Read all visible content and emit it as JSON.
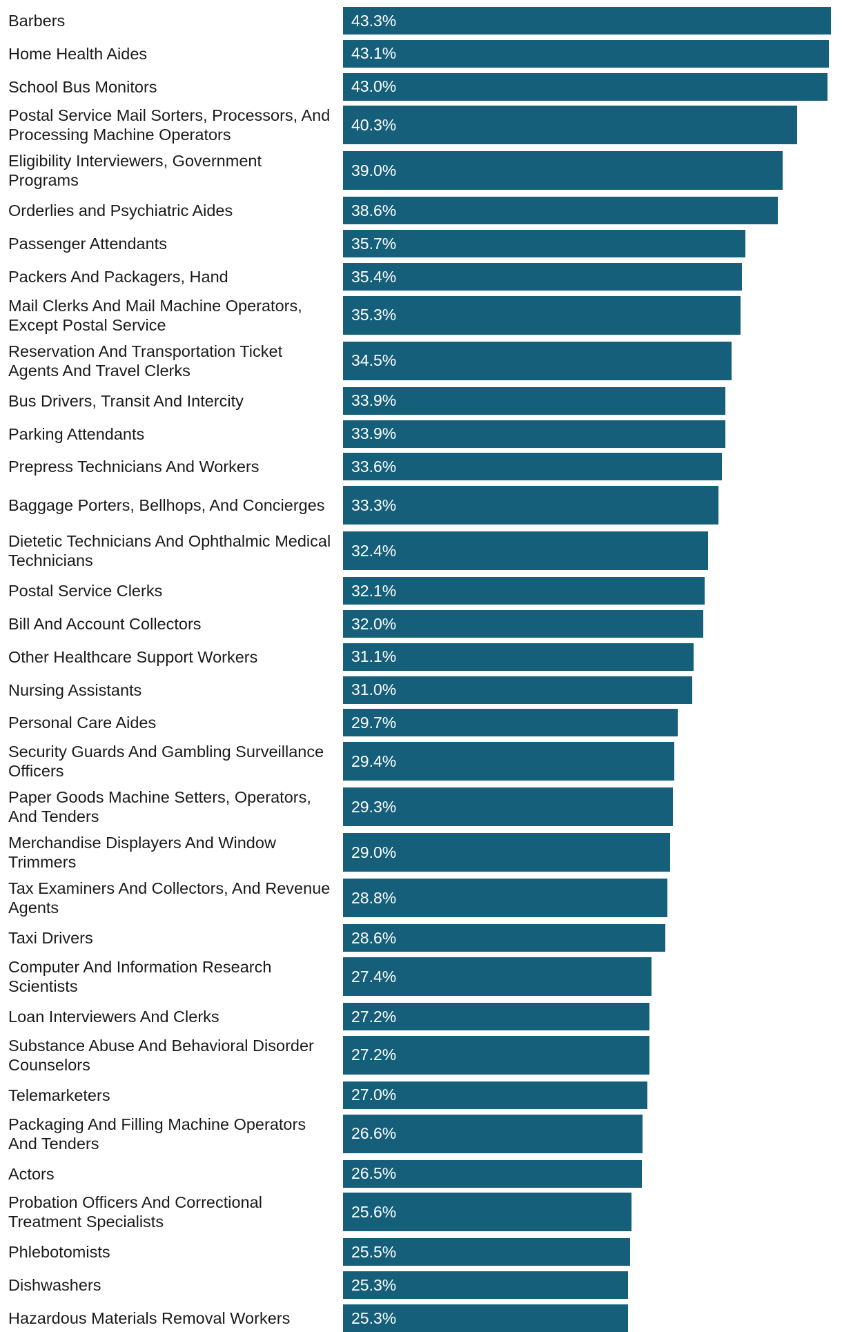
{
  "chart_data": {
    "type": "bar",
    "orientation": "horizontal",
    "bar_color": "#155f7a",
    "value_suffix": "%",
    "xlim": [
      0,
      43.3
    ],
    "categories": [
      "Barbers",
      "Home Health Aides",
      "School Bus Monitors",
      "Postal Service Mail Sorters, Processors, And Processing Machine Operators",
      "Eligibility Interviewers, Government Programs",
      "Orderlies and Psychiatric Aides",
      "Passenger Attendants",
      "Packers And Packagers, Hand",
      "Mail Clerks And Mail Machine Operators, Except Postal Service",
      "Reservation And Transportation Ticket Agents And Travel Clerks",
      "Bus Drivers, Transit And Intercity",
      "Parking Attendants",
      "Prepress Technicians And Workers",
      "Baggage Porters, Bellhops, And Concierges",
      "Dietetic Technicians And Ophthalmic Medical Technicians",
      "Postal Service Clerks",
      "Bill And Account Collectors",
      "Other Healthcare Support Workers",
      "Nursing Assistants",
      "Personal Care Aides",
      "Security Guards And Gambling Surveillance Officers",
      "Paper Goods Machine Setters, Operators, And Tenders",
      "Merchandise Displayers And Window Trimmers",
      "Tax Examiners And Collectors, And Revenue Agents",
      "Taxi Drivers",
      "Computer And Information Research Scientists",
      "Loan Interviewers And Clerks",
      "Substance Abuse And Behavioral Disorder Counselors",
      "Telemarketers",
      "Packaging And Filling Machine Operators And Tenders",
      "Actors",
      "Probation Officers And Correctional Treatment Specialists",
      "Phlebotomists",
      "Dishwashers",
      "Hazardous Materials Removal Workers"
    ],
    "values": [
      43.3,
      43.1,
      43.0,
      40.3,
      39.0,
      38.6,
      35.7,
      35.4,
      35.3,
      34.5,
      33.9,
      33.9,
      33.6,
      33.3,
      32.4,
      32.1,
      32.0,
      31.1,
      31.0,
      29.7,
      29.4,
      29.3,
      29.0,
      28.8,
      28.6,
      27.4,
      27.2,
      27.2,
      27.0,
      26.6,
      26.5,
      25.6,
      25.5,
      25.3,
      25.3
    ],
    "value_labels": [
      "43.3%",
      "43.1%",
      "43.0%",
      "40.3%",
      "39.0%",
      "38.6%",
      "35.7%",
      "35.4%",
      "35.3%",
      "34.5%",
      "33.9%",
      "33.9%",
      "33.6%",
      "33.3%",
      "32.4%",
      "32.1%",
      "32.0%",
      "31.1%",
      "31.0%",
      "29.7%",
      "29.4%",
      "29.3%",
      "29.0%",
      "28.8%",
      "28.6%",
      "27.4%",
      "27.2%",
      "27.2%",
      "27.0%",
      "26.6%",
      "26.5%",
      "25.6%",
      "25.5%",
      "25.3%",
      "25.3%"
    ]
  }
}
